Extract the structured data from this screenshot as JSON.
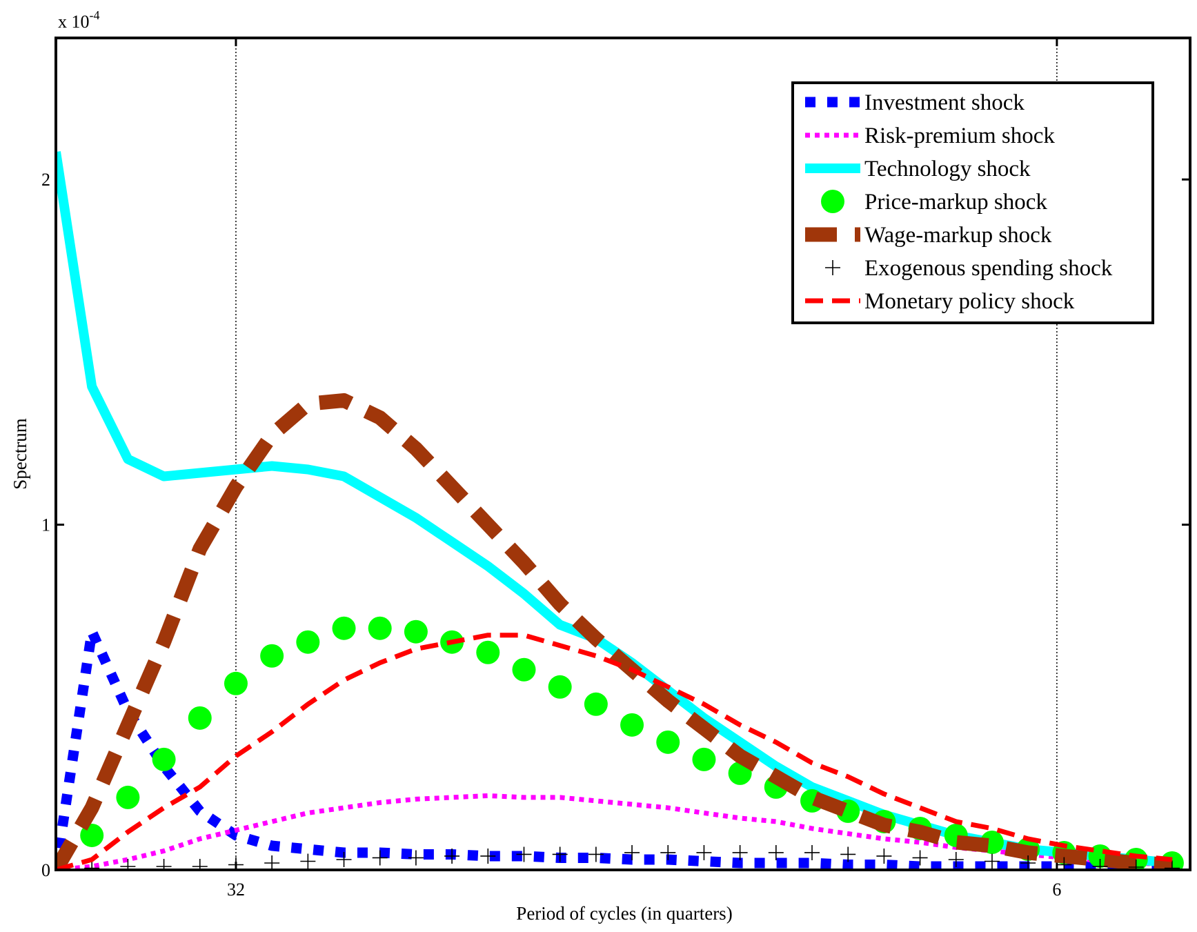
{
  "chart_data": {
    "type": "line",
    "y_multiplier": {
      "base": "x 10",
      "exponent": "-4"
    },
    "xlabel": "Period of cycles (in quarters)",
    "ylabel": "Spectrum",
    "x": [
      0,
      1,
      2,
      3,
      4,
      5,
      6,
      7,
      8,
      9,
      10,
      11,
      12,
      13,
      14,
      15,
      16,
      17,
      18,
      19,
      20,
      21,
      22,
      23,
      24,
      25,
      26,
      27,
      28,
      29,
      30,
      31
    ],
    "xlim": [
      0,
      31.5
    ],
    "xticks": [
      {
        "value": 5,
        "label": "32"
      },
      {
        "value": 27.8,
        "label": "6"
      }
    ],
    "ylim": [
      0,
      2.41
    ],
    "yticks": [
      0,
      1,
      2
    ],
    "grid": "x-dotted",
    "legend": "upper right",
    "series": [
      {
        "name": "Investment shock",
        "color": "#0000ff",
        "line_style": "square-dotted",
        "values": [
          0,
          0.69,
          0.46,
          0.3,
          0.17,
          0.1,
          0.07,
          0.06,
          0.05,
          0.05,
          0.045,
          0.045,
          0.04,
          0.04,
          0.035,
          0.035,
          0.03,
          0.03,
          0.025,
          0.02,
          0.02,
          0.02,
          0.015,
          0.015,
          0.01,
          0.01,
          0.01,
          0.01,
          0.01,
          0.01,
          0.01,
          0.01
        ]
      },
      {
        "name": "Risk-premium shock",
        "color": "#ff00ff",
        "line_style": "dotted",
        "values": [
          0,
          0.01,
          0.03,
          0.055,
          0.09,
          0.115,
          0.14,
          0.165,
          0.18,
          0.195,
          0.205,
          0.21,
          0.215,
          0.21,
          0.21,
          0.2,
          0.19,
          0.18,
          0.165,
          0.15,
          0.14,
          0.12,
          0.105,
          0.09,
          0.08,
          0.065,
          0.055,
          0.045,
          0.035,
          0.027,
          0.02,
          0.015
        ]
      },
      {
        "name": "Technology shock",
        "color": "#00ffff",
        "line_style": "solid",
        "values": [
          2.08,
          1.4,
          1.19,
          1.14,
          1.15,
          1.16,
          1.17,
          1.16,
          1.14,
          1.08,
          1.02,
          0.95,
          0.88,
          0.8,
          0.71,
          0.67,
          0.6,
          0.52,
          0.44,
          0.37,
          0.3,
          0.24,
          0.2,
          0.16,
          0.13,
          0.1,
          0.08,
          0.06,
          0.05,
          0.04,
          0.03,
          0.02
        ]
      },
      {
        "name": "Price-markup shock",
        "color": "#00ff00",
        "line_style": "none",
        "marker": "circle",
        "values": [
          0,
          0.1,
          0.21,
          0.32,
          0.44,
          0.54,
          0.62,
          0.66,
          0.7,
          0.7,
          0.69,
          0.66,
          0.63,
          0.58,
          0.53,
          0.48,
          0.42,
          0.37,
          0.32,
          0.28,
          0.24,
          0.2,
          0.17,
          0.14,
          0.12,
          0.1,
          0.08,
          0.06,
          0.05,
          0.04,
          0.03,
          0.02
        ]
      },
      {
        "name": "Wage-markup shock",
        "color": "#a0360a",
        "line_style": "long-dashed",
        "values": [
          0,
          0.18,
          0.42,
          0.66,
          0.93,
          1.11,
          1.26,
          1.35,
          1.36,
          1.31,
          1.22,
          1.11,
          1.0,
          0.89,
          0.77,
          0.67,
          0.58,
          0.49,
          0.41,
          0.33,
          0.27,
          0.21,
          0.17,
          0.13,
          0.11,
          0.08,
          0.07,
          0.05,
          0.04,
          0.03,
          0.02,
          0.015
        ]
      },
      {
        "name": "Exogenous spending shock",
        "color": "#000000",
        "line_style": "none",
        "marker": "plus",
        "values": [
          0,
          0.005,
          0.01,
          0.01,
          0.01,
          0.015,
          0.02,
          0.025,
          0.03,
          0.035,
          0.035,
          0.04,
          0.04,
          0.045,
          0.045,
          0.045,
          0.05,
          0.05,
          0.05,
          0.05,
          0.05,
          0.05,
          0.045,
          0.04,
          0.035,
          0.03,
          0.025,
          0.02,
          0.015,
          0.01,
          0.008,
          0.005
        ]
      },
      {
        "name": "Monetary policy shock",
        "color": "#ff0000",
        "line_style": "dashed",
        "values": [
          0,
          0.03,
          0.11,
          0.18,
          0.24,
          0.33,
          0.4,
          0.48,
          0.55,
          0.6,
          0.64,
          0.66,
          0.68,
          0.68,
          0.65,
          0.62,
          0.58,
          0.53,
          0.48,
          0.42,
          0.37,
          0.31,
          0.27,
          0.22,
          0.18,
          0.14,
          0.12,
          0.09,
          0.07,
          0.055,
          0.04,
          0.03
        ]
      }
    ]
  }
}
